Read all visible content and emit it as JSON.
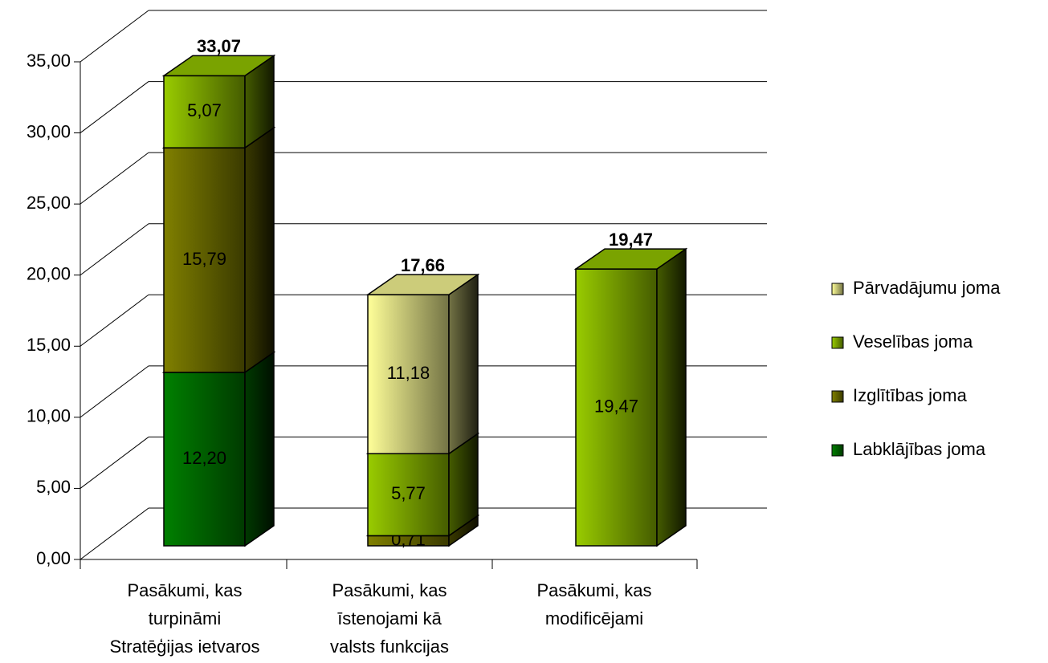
{
  "chart_data": {
    "type": "bar3d_stacked",
    "categories": [
      [
        "Pasākumi, kas",
        "turpināmi",
        "Stratēģijas ietvaros"
      ],
      [
        "Pasākumi, kas",
        "īstenojami kā",
        "valsts funkcijas"
      ],
      [
        "Pasākumi, kas",
        "modificējami"
      ]
    ],
    "series": [
      {
        "name": "Labklājības joma",
        "color": "#008000",
        "values": [
          12.2,
          null,
          null
        ],
        "value_labels": [
          "12,20",
          null,
          null
        ]
      },
      {
        "name": "Izglītības joma",
        "color": "#808000",
        "values": [
          15.79,
          0.71,
          null
        ],
        "value_labels": [
          "15,79",
          "0,71",
          null
        ]
      },
      {
        "name": "Veselības joma",
        "color": "#99cc00",
        "values": [
          5.07,
          5.77,
          19.47
        ],
        "value_labels": [
          "5,07",
          "5,77",
          "19,47"
        ]
      },
      {
        "name": "Pārvadājumu joma",
        "color": "#ffff99",
        "values": [
          null,
          11.18,
          null
        ],
        "value_labels": [
          null,
          "11,18",
          null
        ]
      }
    ],
    "totals": [
      33.07,
      17.66,
      19.47
    ],
    "total_labels": [
      "33,07",
      "17,66",
      "19,47"
    ],
    "ylim": [
      0,
      35
    ],
    "yticks": [
      {
        "value": 0,
        "label": "0,00"
      },
      {
        "value": 5,
        "label": "5,00"
      },
      {
        "value": 10,
        "label": "10,00"
      },
      {
        "value": 15,
        "label": "15,00"
      },
      {
        "value": 20,
        "label": "20,00"
      },
      {
        "value": 25,
        "label": "25,00"
      },
      {
        "value": 30,
        "label": "30,00"
      },
      {
        "value": 35,
        "label": "35,00"
      }
    ],
    "grid": true,
    "legend": "right"
  }
}
